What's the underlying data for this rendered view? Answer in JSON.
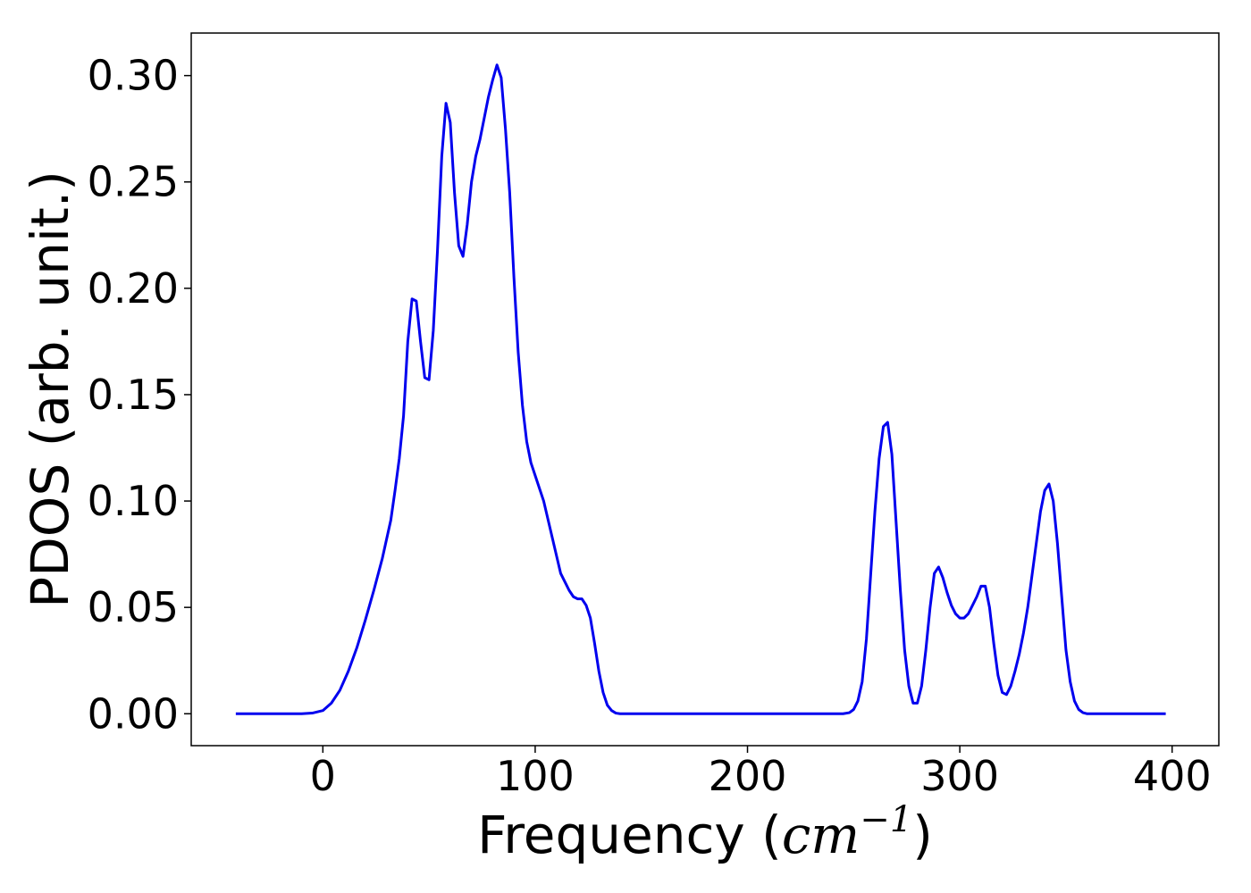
{
  "chart_data": {
    "type": "line",
    "title": "",
    "xlabel": "Frequency",
    "xlabel_unit_base": "cm",
    "xlabel_unit_exponent": "−1",
    "ylabel": "PDOS (arb. unit.)",
    "xlim": [
      -62,
      422
    ],
    "ylim": [
      -0.015,
      0.32
    ],
    "xticks": [
      0,
      100,
      200,
      300,
      400
    ],
    "xtick_labels": [
      "0",
      "100",
      "200",
      "300",
      "400"
    ],
    "yticks": [
      0,
      0.05,
      0.1,
      0.15,
      0.2,
      0.25,
      0.3
    ],
    "ytick_labels": [
      "0.00",
      "0.05",
      "0.10",
      "0.15",
      "0.20",
      "0.25",
      "0.30"
    ],
    "grid": false,
    "legend": null,
    "series": [
      {
        "color": "#0000ee",
        "x": [
          -41,
          -30,
          -20,
          -10,
          -5,
          0,
          4,
          8,
          12,
          16,
          20,
          24,
          28,
          32,
          34,
          36,
          38,
          40,
          42,
          44,
          46,
          48,
          50,
          52,
          54,
          56,
          58,
          60,
          62,
          64,
          66,
          68,
          70,
          72,
          74,
          76,
          78,
          80,
          82,
          84,
          86,
          88,
          90,
          92,
          94,
          96,
          98,
          100,
          104,
          108,
          112,
          116,
          118,
          120,
          122,
          124,
          126,
          128,
          130,
          132,
          134,
          136,
          138,
          140,
          145,
          150,
          200,
          245,
          248,
          250,
          252,
          254,
          256,
          258,
          260,
          262,
          264,
          266,
          268,
          270,
          272,
          274,
          276,
          278,
          280,
          282,
          284,
          286,
          288,
          290,
          292,
          294,
          296,
          298,
          300,
          302,
          304,
          306,
          308,
          310,
          312,
          314,
          316,
          318,
          320,
          322,
          324,
          326,
          328,
          330,
          332,
          334,
          336,
          338,
          340,
          342,
          344,
          346,
          348,
          350,
          352,
          354,
          356,
          358,
          360,
          362,
          364,
          366,
          368,
          370,
          380,
          397
        ],
        "y": [
          0.0,
          0.0,
          0.0,
          0.0,
          0.0003,
          0.0015,
          0.005,
          0.011,
          0.02,
          0.031,
          0.044,
          0.058,
          0.073,
          0.091,
          0.105,
          0.12,
          0.14,
          0.175,
          0.195,
          0.194,
          0.175,
          0.158,
          0.157,
          0.18,
          0.218,
          0.262,
          0.287,
          0.278,
          0.245,
          0.22,
          0.215,
          0.23,
          0.25,
          0.262,
          0.27,
          0.28,
          0.29,
          0.298,
          0.305,
          0.299,
          0.275,
          0.245,
          0.205,
          0.17,
          0.145,
          0.128,
          0.118,
          0.112,
          0.1,
          0.083,
          0.066,
          0.058,
          0.055,
          0.054,
          0.054,
          0.051,
          0.045,
          0.033,
          0.02,
          0.01,
          0.004,
          0.0015,
          0.0003,
          0.0,
          0.0,
          0.0,
          0.0,
          0.0,
          0.0005,
          0.002,
          0.006,
          0.015,
          0.035,
          0.065,
          0.095,
          0.12,
          0.135,
          0.137,
          0.122,
          0.09,
          0.058,
          0.03,
          0.013,
          0.005,
          0.005,
          0.013,
          0.03,
          0.05,
          0.066,
          0.069,
          0.064,
          0.057,
          0.051,
          0.047,
          0.045,
          0.045,
          0.047,
          0.051,
          0.055,
          0.06,
          0.06,
          0.05,
          0.033,
          0.018,
          0.01,
          0.009,
          0.013,
          0.02,
          0.028,
          0.038,
          0.05,
          0.065,
          0.08,
          0.095,
          0.105,
          0.108,
          0.1,
          0.08,
          0.055,
          0.03,
          0.015,
          0.006,
          0.002,
          0.0005,
          0.0,
          0.0,
          0.0,
          0.0,
          0.0,
          0.0,
          0.0,
          0.0
        ]
      }
    ]
  }
}
